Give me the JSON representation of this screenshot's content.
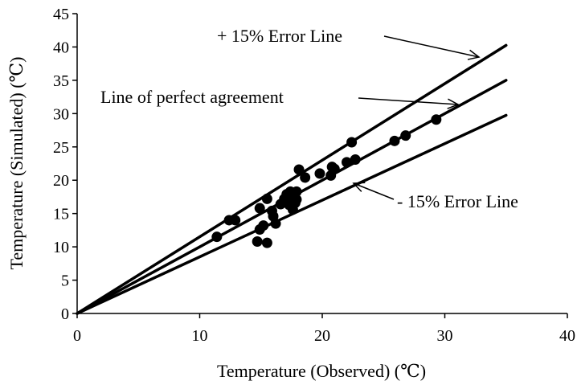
{
  "chart_data": {
    "type": "scatter",
    "xlabel": "Temperature (Observed) (℃)",
    "ylabel": "Temperature (Simulated) (℃)",
    "xlim": [
      0,
      40
    ],
    "ylim": [
      0,
      45
    ],
    "xticks": [
      0,
      10,
      20,
      30,
      40
    ],
    "yticks": [
      0,
      5,
      10,
      15,
      20,
      25,
      30,
      35,
      40,
      45
    ],
    "grid": false,
    "lines": [
      {
        "label": "+ 15% Error Line",
        "slope": 1.15,
        "x_range": [
          0,
          35
        ]
      },
      {
        "label": "Line of perfect agreement",
        "slope": 1.0,
        "x_range": [
          0,
          35
        ]
      },
      {
        "label": "- 15% Error Line",
        "slope": 0.85,
        "x_range": [
          0,
          35
        ]
      }
    ],
    "points": [
      {
        "x": 11.4,
        "y": 11.5
      },
      {
        "x": 12.4,
        "y": 14.0
      },
      {
        "x": 12.9,
        "y": 14.0
      },
      {
        "x": 14.7,
        "y": 10.8
      },
      {
        "x": 14.9,
        "y": 12.6
      },
      {
        "x": 14.9,
        "y": 15.8
      },
      {
        "x": 15.2,
        "y": 13.2
      },
      {
        "x": 15.5,
        "y": 17.2
      },
      {
        "x": 15.5,
        "y": 10.6
      },
      {
        "x": 15.9,
        "y": 15.4
      },
      {
        "x": 16.0,
        "y": 14.6
      },
      {
        "x": 16.2,
        "y": 13.5
      },
      {
        "x": 16.6,
        "y": 16.4
      },
      {
        "x": 16.9,
        "y": 17.2
      },
      {
        "x": 17.1,
        "y": 17.9
      },
      {
        "x": 17.3,
        "y": 16.3
      },
      {
        "x": 17.4,
        "y": 18.3
      },
      {
        "x": 17.5,
        "y": 17.6
      },
      {
        "x": 17.6,
        "y": 15.6
      },
      {
        "x": 17.8,
        "y": 16.6
      },
      {
        "x": 17.9,
        "y": 17.1
      },
      {
        "x": 17.9,
        "y": 18.3
      },
      {
        "x": 18.1,
        "y": 21.6
      },
      {
        "x": 18.6,
        "y": 20.4
      },
      {
        "x": 19.8,
        "y": 21.0
      },
      {
        "x": 20.7,
        "y": 20.7
      },
      {
        "x": 20.8,
        "y": 22.0
      },
      {
        "x": 21.0,
        "y": 21.7
      },
      {
        "x": 22.0,
        "y": 22.7
      },
      {
        "x": 22.4,
        "y": 25.7
      },
      {
        "x": 22.7,
        "y": 23.1
      },
      {
        "x": 25.9,
        "y": 25.9
      },
      {
        "x": 26.8,
        "y": 26.7
      },
      {
        "x": 29.3,
        "y": 29.1
      }
    ]
  }
}
